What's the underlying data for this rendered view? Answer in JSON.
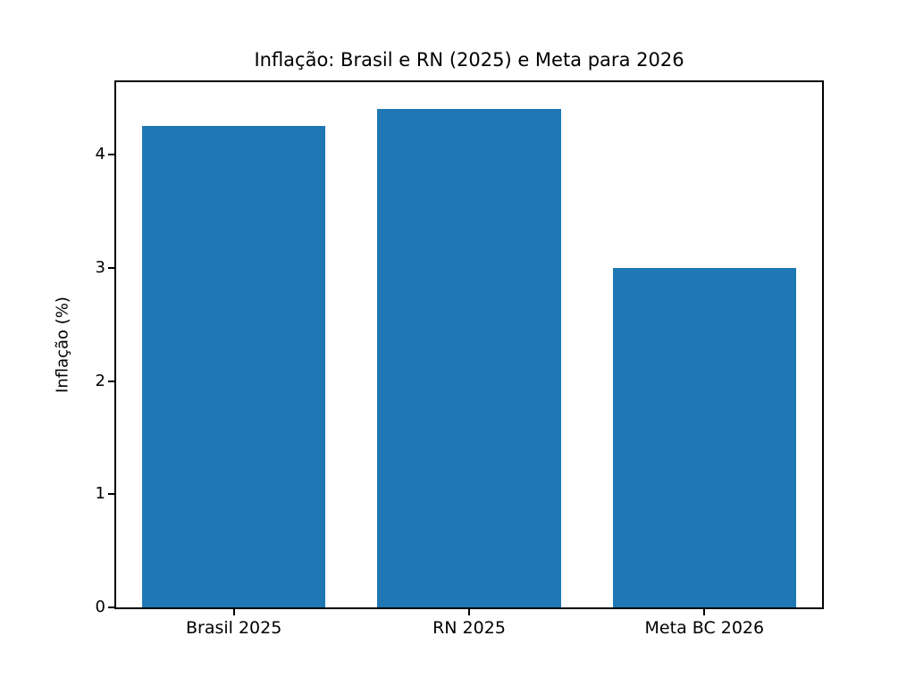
{
  "chart_data": {
    "type": "bar",
    "title": "Inflação: Brasil e RN (2025) e Meta para 2026",
    "categories": [
      "Brasil 2025",
      "RN 2025",
      "Meta BC 2026"
    ],
    "values": [
      4.25,
      4.4,
      3.0
    ],
    "xlabel": "",
    "ylabel": "Inflação (%)",
    "ylim": [
      0,
      4.64
    ],
    "yticks": [
      0,
      1,
      2,
      3,
      4
    ],
    "bar_color": "#1f77b4",
    "axis_color": "#000000",
    "background_color": "#ffffff",
    "grid": false,
    "legend": false
  }
}
